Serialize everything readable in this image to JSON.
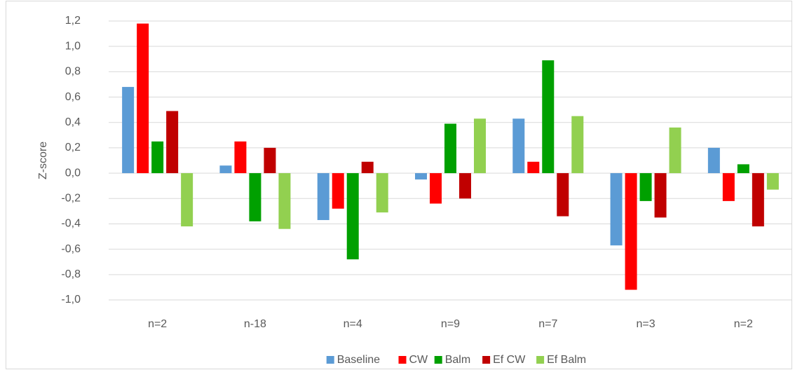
{
  "chart_data": {
    "type": "bar",
    "y_label": "Z-score",
    "categories": [
      "n=2",
      "n-18",
      "n=4",
      "n=9",
      "n=7",
      "n=3",
      "n=2"
    ],
    "series": [
      {
        "name": "Baseline",
        "color": "#5b9bd5",
        "values": [
          0.68,
          0.06,
          -0.37,
          -0.05,
          0.43,
          -0.57,
          0.2
        ]
      },
      {
        "name": "CW",
        "color": "#ff0000",
        "values": [
          1.18,
          0.25,
          -0.28,
          -0.24,
          0.09,
          -0.92,
          -0.22
        ]
      },
      {
        "name": "Balm",
        "color": "#00a000",
        "values": [
          0.25,
          -0.38,
          -0.68,
          0.39,
          0.89,
          -0.22,
          0.07
        ]
      },
      {
        "name": "Ef CW",
        "color": "#c00000",
        "values": [
          0.49,
          0.2,
          0.09,
          -0.2,
          -0.34,
          -0.35,
          -0.42
        ]
      },
      {
        "name": "Ef Balm",
        "color": "#92d050",
        "values": [
          -0.42,
          -0.44,
          -0.31,
          0.43,
          0.45,
          0.36,
          -0.13
        ]
      }
    ],
    "ylim": [
      -1.0,
      1.2
    ],
    "yticks": [
      {
        "value": -1.0,
        "label": "-1,0"
      },
      {
        "value": -0.8,
        "label": "-0,8"
      },
      {
        "value": -0.6,
        "label": "-0,6"
      },
      {
        "value": -0.4,
        "label": "-0,4"
      },
      {
        "value": -0.2,
        "label": "-0,2"
      },
      {
        "value": 0.0,
        "label": "0,0"
      },
      {
        "value": 0.2,
        "label": "0,2"
      },
      {
        "value": 0.4,
        "label": "0,4"
      },
      {
        "value": 0.6,
        "label": "0,6"
      },
      {
        "value": 0.8,
        "label": "0,8"
      },
      {
        "value": 1.0,
        "label": "1,0"
      },
      {
        "value": 1.2,
        "label": "1,2"
      }
    ],
    "grid": true,
    "legend": "bottom"
  }
}
